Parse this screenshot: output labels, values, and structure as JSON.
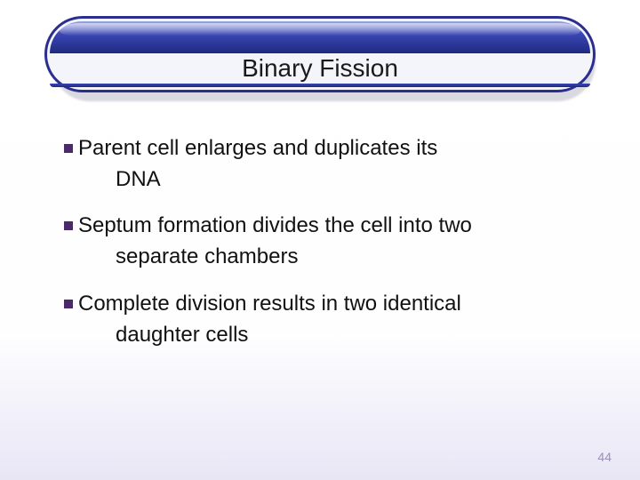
{
  "title": "Binary Fission",
  "bullets": [
    {
      "first": "Parent cell enlarges and duplicates its",
      "rest": "DNA"
    },
    {
      "first": "Septum formation divides the cell into two",
      "rest": "separate chambers"
    },
    {
      "first": "Complete division results in two identical",
      "rest": "daughter cells"
    }
  ],
  "bullet_color": "#4a2a6a",
  "page_number": "44",
  "colors": {
    "title_border": "#2a2f8f",
    "band_top": "#9aa5e3",
    "band_mid": "#3a46b3",
    "band_bottom": "#1e2a7f",
    "bg_bottom": "#e8e6f5",
    "page_num": "#9b8fb5"
  },
  "fonts": {
    "title_size_pt": 21,
    "body_size_pt": 18,
    "pagenum_size_pt": 10
  }
}
